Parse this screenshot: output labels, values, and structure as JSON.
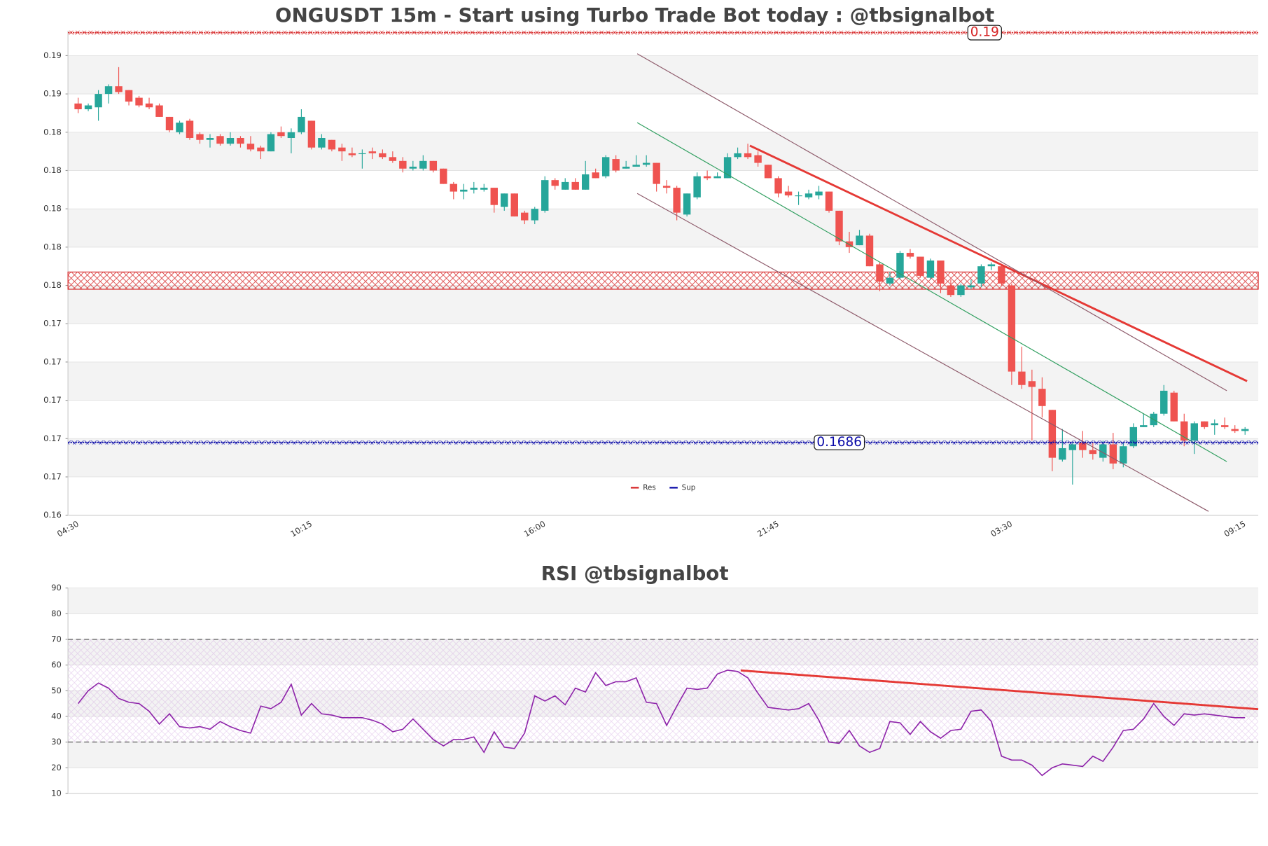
{
  "chart_data": [
    {
      "type": "candlestick",
      "title": "ONGUSDT 15m - Start using Turbo Trade Bot today : @tbsignalbot",
      "categories": [
        "04:30",
        null,
        null,
        null,
        null,
        null,
        null,
        null,
        null,
        null,
        null,
        null,
        null,
        null,
        null,
        null,
        null,
        null,
        null,
        null,
        null,
        null,
        null,
        "10:15",
        null,
        null,
        null,
        null,
        null,
        null,
        null,
        null,
        null,
        null,
        null,
        null,
        null,
        null,
        null,
        null,
        null,
        null,
        null,
        null,
        null,
        null,
        "16:00",
        null,
        null,
        null,
        null,
        null,
        null,
        null,
        null,
        null,
        null,
        null,
        null,
        null,
        null,
        null,
        null,
        null,
        null,
        null,
        null,
        null,
        null,
        "21:45",
        null,
        null,
        null,
        null,
        null,
        null,
        null,
        null,
        null,
        null,
        null,
        null,
        null,
        null,
        null,
        null,
        null,
        null,
        null,
        null,
        null,
        null,
        "03:30",
        null,
        null,
        null,
        null,
        null,
        null,
        null,
        null,
        null,
        null,
        null,
        null,
        null,
        null,
        null,
        null,
        null,
        null,
        null,
        null,
        null,
        null,
        "09:15"
      ],
      "open": [
        0.1863,
        0.186,
        0.1861,
        0.1868,
        0.1872,
        0.187,
        0.1866,
        0.1863,
        0.1862,
        0.1856,
        0.1848,
        0.1854,
        0.1847,
        0.1844,
        0.1846,
        0.1842,
        0.1845,
        0.1842,
        0.184,
        0.1838,
        0.1848,
        0.1845,
        0.1848,
        0.1854,
        0.184,
        0.1844,
        0.184,
        0.1837,
        0.1837,
        0.1838,
        0.1837,
        0.1835,
        0.1833,
        0.1829,
        0.1829,
        0.1833,
        0.1829,
        0.1821,
        0.1817,
        0.1818,
        0.1818,
        0.1819,
        0.1809,
        0.1816,
        0.1806,
        0.1802,
        0.1807,
        0.1823,
        0.1818,
        0.1822,
        0.1818,
        0.1827,
        0.1825,
        0.1834,
        0.1829,
        0.183,
        0.1831,
        0.1832,
        0.182,
        0.1819,
        0.1805,
        0.1814,
        0.1825,
        0.1824,
        0.1824,
        0.1835,
        0.1837,
        0.1836,
        0.1831,
        0.1824,
        0.1817,
        0.1815,
        0.1814,
        0.1815,
        0.1817,
        0.1807,
        0.1791,
        0.1789,
        0.1794,
        0.1779,
        0.1769,
        0.1772,
        0.1785,
        0.1783,
        0.1772,
        0.1781,
        0.1768,
        0.1763,
        0.1767,
        0.1769,
        0.1778,
        0.1778,
        0.1768,
        0.1723,
        0.1718,
        0.1714,
        0.1703,
        0.1677,
        0.1682,
        0.1686,
        0.1682,
        0.1678,
        0.1685,
        0.1675,
        0.1684,
        0.1694,
        0.1695,
        0.1701,
        0.1712,
        0.1697,
        0.1687,
        0.1697,
        0.1695,
        0.1695,
        0.1693,
        0.1692
      ],
      "high": [
        0.1866,
        0.1863,
        0.187,
        0.1873,
        0.1882,
        0.187,
        0.1867,
        0.1866,
        0.1863,
        0.1856,
        0.1854,
        0.1855,
        0.1848,
        0.1847,
        0.1847,
        0.1848,
        0.1846,
        0.1846,
        0.1841,
        0.1848,
        0.1851,
        0.185,
        0.186,
        0.1854,
        0.1847,
        0.1844,
        0.1842,
        0.184,
        0.1839,
        0.184,
        0.1839,
        0.1838,
        0.1835,
        0.1833,
        0.1836,
        0.1833,
        0.1829,
        0.1822,
        0.1821,
        0.1822,
        0.1821,
        0.1819,
        0.1816,
        0.1816,
        0.1807,
        0.1809,
        0.1825,
        0.1824,
        0.1824,
        0.1824,
        0.1833,
        0.1829,
        0.1836,
        0.1836,
        0.1833,
        0.1836,
        0.1836,
        0.1832,
        0.1823,
        0.182,
        0.1816,
        0.1827,
        0.1828,
        0.1827,
        0.1837,
        0.184,
        0.1842,
        0.1838,
        0.1831,
        0.1825,
        0.182,
        0.1817,
        0.1818,
        0.182,
        0.1817,
        0.1807,
        0.1796,
        0.1797,
        0.1795,
        0.178,
        0.1775,
        0.1786,
        0.1787,
        0.1783,
        0.1782,
        0.1781,
        0.1771,
        0.1769,
        0.1771,
        0.1779,
        0.178,
        0.1779,
        0.1769,
        0.1736,
        0.1724,
        0.172,
        0.1703,
        0.1693,
        0.1686,
        0.1692,
        0.1686,
        0.1687,
        0.1691,
        0.1686,
        0.1696,
        0.1701,
        0.1702,
        0.1716,
        0.1713,
        0.1701,
        0.1697,
        0.1697,
        0.1698,
        0.1699,
        0.1695,
        0.1694
      ],
      "low": [
        0.1858,
        0.1859,
        0.1854,
        0.1863,
        0.1868,
        0.1862,
        0.1861,
        0.186,
        0.1856,
        0.1848,
        0.1847,
        0.1844,
        0.1842,
        0.184,
        0.1841,
        0.1841,
        0.184,
        0.1838,
        0.1834,
        0.1838,
        0.1845,
        0.1837,
        0.1847,
        0.1839,
        0.1839,
        0.1838,
        0.1833,
        0.1835,
        0.1829,
        0.1834,
        0.1834,
        0.1832,
        0.1827,
        0.1828,
        0.1828,
        0.1827,
        0.1821,
        0.1813,
        0.1813,
        0.1816,
        0.1817,
        0.1806,
        0.1807,
        0.1804,
        0.18,
        0.18,
        0.1806,
        0.1818,
        0.1818,
        0.1818,
        0.1818,
        0.1824,
        0.1824,
        0.1827,
        0.1829,
        0.183,
        0.183,
        0.1817,
        0.1816,
        0.1802,
        0.1804,
        0.1813,
        0.1823,
        0.1824,
        0.1824,
        0.1834,
        0.1834,
        0.183,
        0.1824,
        0.1814,
        0.1814,
        0.181,
        0.1813,
        0.1813,
        0.1806,
        0.1789,
        0.1785,
        0.1789,
        0.1778,
        0.1765,
        0.1768,
        0.1771,
        0.1782,
        0.1772,
        0.1771,
        0.1764,
        0.1762,
        0.1762,
        0.1766,
        0.1767,
        0.1776,
        0.1768,
        0.1716,
        0.1714,
        0.1687,
        0.1699,
        0.1671,
        0.1676,
        0.1664,
        0.1678,
        0.1677,
        0.1676,
        0.1672,
        0.1673,
        0.1683,
        0.1694,
        0.1694,
        0.17,
        0.1697,
        0.1684,
        0.168,
        0.1693,
        0.169,
        0.1693,
        0.1691,
        0.169
      ],
      "close": [
        0.186,
        0.1862,
        0.1868,
        0.1872,
        0.1869,
        0.1864,
        0.1862,
        0.1861,
        0.1856,
        0.1849,
        0.1853,
        0.1845,
        0.1844,
        0.1845,
        0.1842,
        0.1845,
        0.1842,
        0.1839,
        0.1838,
        0.1847,
        0.1846,
        0.1848,
        0.1856,
        0.184,
        0.1845,
        0.1839,
        0.1838,
        0.1836,
        0.1837,
        0.1837,
        0.1835,
        0.1833,
        0.1829,
        0.183,
        0.1833,
        0.1828,
        0.1821,
        0.1817,
        0.1818,
        0.1819,
        0.1819,
        0.181,
        0.1816,
        0.1804,
        0.1802,
        0.1808,
        0.1823,
        0.182,
        0.1822,
        0.1818,
        0.1826,
        0.1824,
        0.1835,
        0.1828,
        0.183,
        0.1831,
        0.1832,
        0.1821,
        0.1819,
        0.1806,
        0.1816,
        0.1825,
        0.1824,
        0.1825,
        0.1835,
        0.1837,
        0.1835,
        0.1832,
        0.1824,
        0.1816,
        0.1815,
        0.1815,
        0.1816,
        0.1817,
        0.1807,
        0.1791,
        0.1788,
        0.1794,
        0.1778,
        0.177,
        0.1772,
        0.1785,
        0.1783,
        0.1773,
        0.1781,
        0.1769,
        0.1763,
        0.1768,
        0.1768,
        0.1778,
        0.1779,
        0.1769,
        0.1723,
        0.1716,
        0.1715,
        0.1705,
        0.1678,
        0.1683,
        0.1685,
        0.1682,
        0.168,
        0.1685,
        0.1675,
        0.1684,
        0.1694,
        0.1695,
        0.1701,
        0.1713,
        0.1697,
        0.1687,
        0.1696,
        0.1694,
        0.1696,
        0.1694,
        0.1692,
        0.1693
      ],
      "up_color": "#26a69a",
      "down_color": "#ef5350",
      "ylim": [
        0.1648,
        0.1901
      ],
      "yticks": [
        {
          "value": 0.1648,
          "label": "0.16"
        },
        {
          "value": 0.1668,
          "label": "0.17"
        },
        {
          "value": 0.1688,
          "label": "0.17"
        },
        {
          "value": 0.1708,
          "label": "0.17"
        },
        {
          "value": 0.1728,
          "label": "0.17"
        },
        {
          "value": 0.1748,
          "label": "0.17"
        },
        {
          "value": 0.1768,
          "label": "0.18"
        },
        {
          "value": 0.1788,
          "label": "0.18"
        },
        {
          "value": 0.1808,
          "label": "0.18"
        },
        {
          "value": 0.1828,
          "label": "0.18"
        },
        {
          "value": 0.1848,
          "label": "0.18"
        },
        {
          "value": 0.1868,
          "label": "0.19"
        },
        {
          "value": 0.1888,
          "label": "0.19"
        }
      ],
      "grid": true,
      "levels": [
        {
          "name": "Res",
          "value": 0.19,
          "color": "#d62728"
        },
        {
          "name": "Sup",
          "value": 0.1686,
          "color": "#0a0aa8"
        }
      ],
      "legend": "lower center",
      "zones": [
        {
          "range": [
            0.1766,
            0.1775
          ],
          "color": "#d62728"
        }
      ],
      "trendlines": [
        {
          "x": [
            66.2,
            115.2
          ],
          "y": [
            0.1841,
            0.1718
          ],
          "color": "#e53935",
          "width": 2.5
        },
        {
          "x": [
            55.1,
            113.2
          ],
          "y": [
            0.1889,
            0.1713
          ],
          "color": "#8d5a6a",
          "width": 1
        },
        {
          "x": [
            55.1,
            113.2
          ],
          "y": [
            0.1853,
            0.1676
          ],
          "color": "#2e9e5e",
          "width": 1
        },
        {
          "x": [
            55.1,
            111.4
          ],
          "y": [
            0.1816,
            0.165
          ],
          "color": "#8d5a6a",
          "width": 1
        }
      ]
    },
    {
      "type": "line",
      "title": "RSI @tbsignalbot",
      "values": [
        45,
        50,
        53,
        51,
        47,
        45.5,
        45,
        42,
        37,
        41,
        36,
        35.5,
        36,
        35,
        38,
        36,
        34.5,
        33.5,
        44,
        43,
        45.5,
        52.5,
        40.5,
        45,
        41,
        40.5,
        39.5,
        39.5,
        39.5,
        38.5,
        37,
        34,
        35,
        39,
        35,
        31,
        28.5,
        31,
        31,
        32,
        26,
        34,
        28,
        27.5,
        33.5,
        48,
        46,
        48,
        44.5,
        51,
        49.5,
        57,
        52,
        53.5,
        53.5,
        55,
        45.5,
        45,
        36.5,
        44,
        51,
        50.5,
        51,
        56.5,
        58,
        57.5,
        55,
        49,
        43.5,
        43,
        42.5,
        43,
        45,
        38.5,
        30,
        29.5,
        34.5,
        28.5,
        26,
        27.5,
        38,
        37.5,
        33,
        38,
        34,
        31.5,
        34.5,
        35,
        42,
        42.5,
        38,
        24.5,
        23,
        23,
        21,
        17,
        20,
        21.5,
        21,
        20.5,
        24.5,
        22.5,
        28,
        34.5,
        35,
        39,
        45,
        40,
        36.5,
        41,
        40.5,
        41,
        40.5,
        40,
        39.5,
        39.5
      ],
      "color": "#8e24aa",
      "ylim": [
        10,
        90
      ],
      "yticks": [
        10,
        20,
        30,
        40,
        50,
        60,
        70,
        80,
        90
      ],
      "grid": true,
      "hlines": [
        70,
        30
      ],
      "band_color": "#c58fd8",
      "trendlines": [
        {
          "x": [
            65.3,
            116.3
          ],
          "y": [
            57.9,
            42.8
          ],
          "color": "#e53935",
          "width": 2.5
        }
      ]
    }
  ]
}
